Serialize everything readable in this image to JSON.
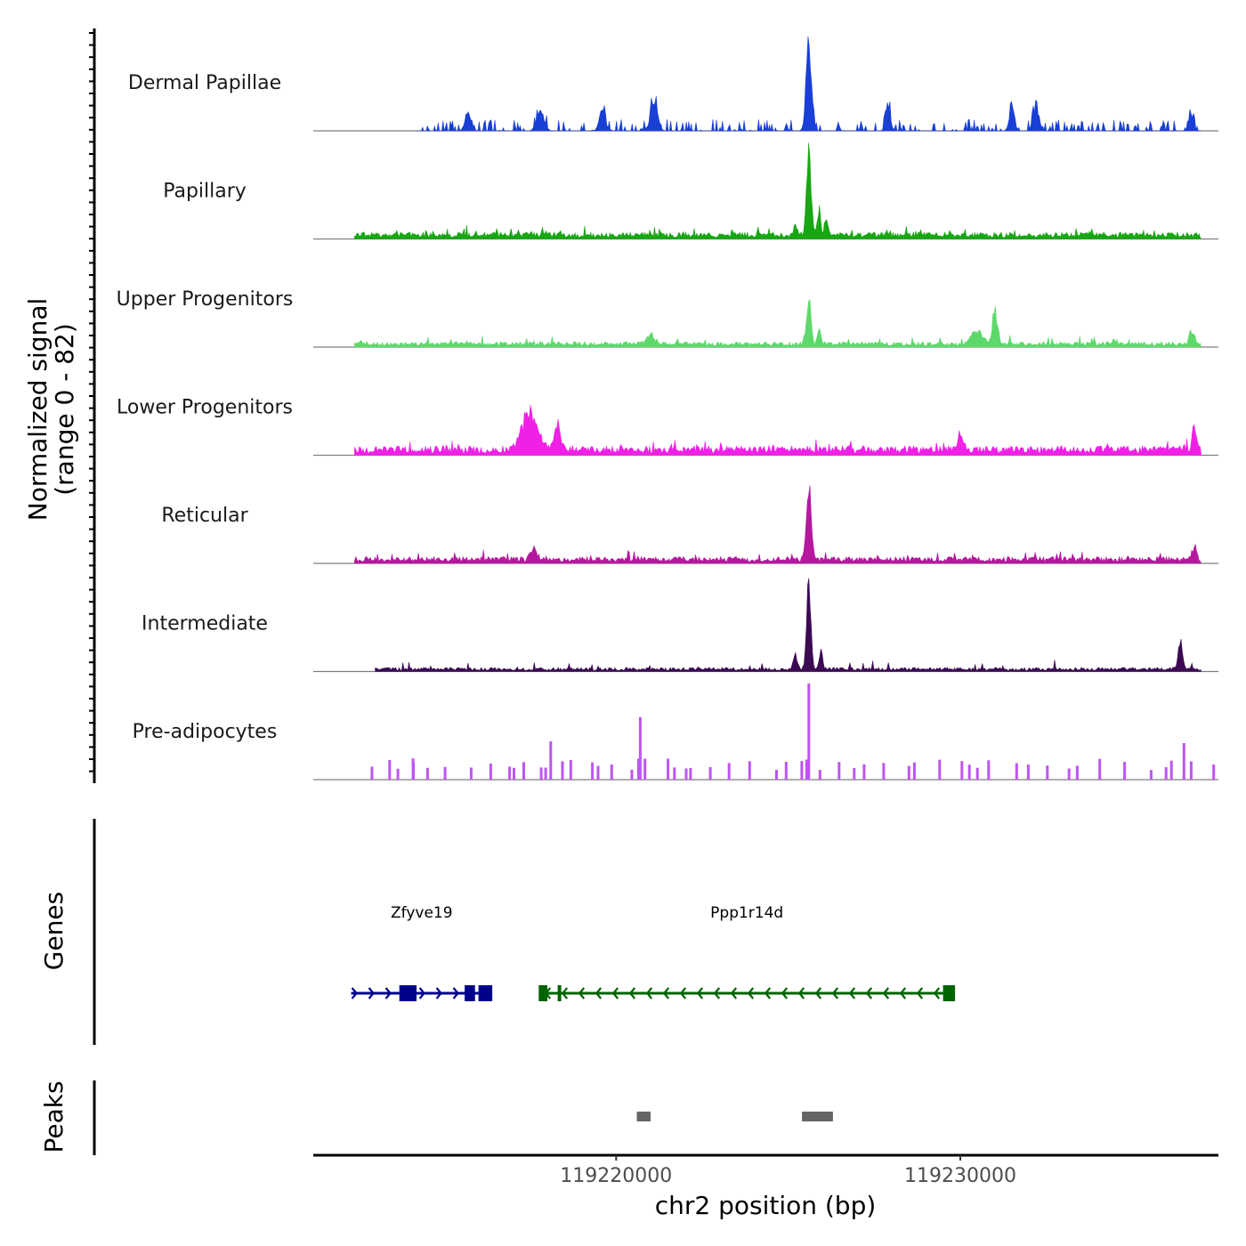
{
  "chart_data": {
    "type": "area",
    "title": "",
    "chromosome": "chr2",
    "xlabel": "chr2 position (bp)",
    "ylabel_line1": "Normalized signal",
    "ylabel_line2": "(range 0 - 82)",
    "ylim": [
      0,
      82
    ],
    "xlim": [
      119211200,
      119237500
    ],
    "x_ticks": [
      119220000,
      119230000
    ],
    "x_tick_labels": [
      "119220000",
      "119230000"
    ],
    "series": [
      {
        "name": "Dermal Papillae",
        "color": "#1a3fd6",
        "style": "spiky",
        "start": 119214200,
        "end": 119237000,
        "baseline": 0.05,
        "peaks": [
          [
            119225600,
            0.95,
            110
          ],
          [
            119227900,
            0.3,
            90
          ],
          [
            119231500,
            0.3,
            100
          ],
          [
            119232200,
            0.28,
            120
          ],
          [
            119215700,
            0.22,
            120
          ],
          [
            119217800,
            0.22,
            150
          ],
          [
            119219600,
            0.25,
            120
          ],
          [
            119221100,
            0.35,
            140
          ],
          [
            119236700,
            0.2,
            80
          ]
        ]
      },
      {
        "name": "Papillary",
        "color": "#18a614",
        "style": "dense",
        "start": 119212400,
        "end": 119237000,
        "baseline": 0.05,
        "peaks": [
          [
            119225600,
            0.98,
            90
          ],
          [
            119225900,
            0.28,
            70
          ],
          [
            119226100,
            0.2,
            60
          ],
          [
            119225200,
            0.12,
            70
          ]
        ]
      },
      {
        "name": "Upper Progenitors",
        "color": "#5dd96b",
        "style": "dense",
        "start": 119212400,
        "end": 119237000,
        "baseline": 0.04,
        "peaks": [
          [
            119225600,
            0.48,
            90
          ],
          [
            119225900,
            0.15,
            70
          ],
          [
            119231000,
            0.38,
            100
          ],
          [
            119230500,
            0.14,
            250
          ],
          [
            119221000,
            0.12,
            150
          ],
          [
            119236700,
            0.14,
            80
          ]
        ]
      },
      {
        "name": "Lower Progenitors",
        "color": "#f020e6",
        "style": "dense",
        "start": 119212400,
        "end": 119237000,
        "baseline": 0.07,
        "peaks": [
          [
            119217500,
            0.42,
            320
          ],
          [
            119218300,
            0.28,
            120
          ],
          [
            119230000,
            0.18,
            120
          ],
          [
            119236800,
            0.3,
            80
          ]
        ]
      },
      {
        "name": "Reticular",
        "color": "#b5189e",
        "style": "dense",
        "start": 119212400,
        "end": 119237000,
        "baseline": 0.05,
        "peaks": [
          [
            119225600,
            0.78,
            100
          ],
          [
            119236800,
            0.16,
            80
          ],
          [
            119217600,
            0.14,
            120
          ]
        ]
      },
      {
        "name": "Intermediate",
        "color": "#3b0a52",
        "style": "dense",
        "start": 119213000,
        "end": 119237000,
        "baseline": 0.03,
        "peaks": [
          [
            119225600,
            1.0,
            85
          ],
          [
            119225200,
            0.18,
            80
          ],
          [
            119225950,
            0.22,
            70
          ],
          [
            119236400,
            0.3,
            90
          ]
        ]
      },
      {
        "name": "Pre-adipocytes",
        "color": "#bd55f0",
        "style": "bars",
        "start": 119212700,
        "end": 119237000,
        "baseline": 0.0,
        "peaks": [
          [
            119225600,
            1.0,
            60
          ],
          [
            119220700,
            0.65,
            70
          ],
          [
            119218100,
            0.4,
            60
          ],
          [
            119236500,
            0.38,
            60
          ],
          [
            119214100,
            0.22,
            60
          ]
        ]
      }
    ],
    "genes": [
      {
        "name": "Zfyve19",
        "strand": "+",
        "color": "#00008b",
        "start": 119212300,
        "end": 119216400,
        "exons": [
          [
            119213700,
            119214200
          ],
          [
            119215600,
            119215900
          ],
          [
            119216000,
            119216400
          ]
        ]
      },
      {
        "name": "Ppp1r14d",
        "strand": "-",
        "color": "#006400",
        "start": 119217800,
        "end": 119229800,
        "exons": [
          [
            119217750,
            119218000
          ],
          [
            119218300,
            119218400
          ],
          [
            119229500,
            119229850
          ]
        ]
      }
    ],
    "peaks": [
      {
        "start": 119220600,
        "end": 119221000
      },
      {
        "start": 119225400,
        "end": 119226300
      }
    ],
    "panels": [
      "Genes",
      "Peaks"
    ]
  }
}
